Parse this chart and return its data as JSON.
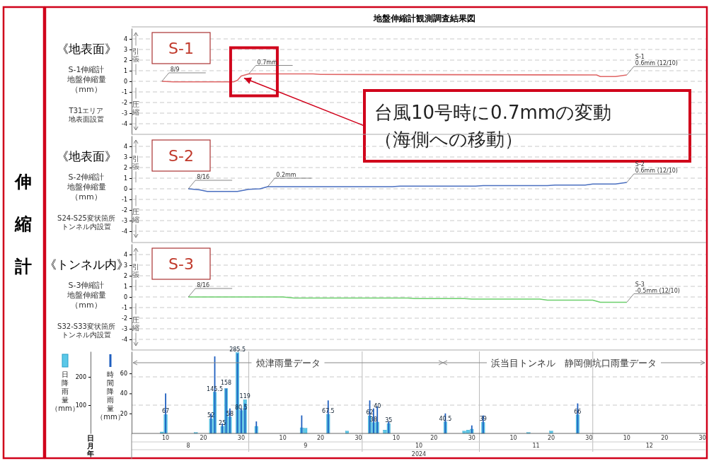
{
  "chart_data": [
    {
      "type": "line",
      "title": "地盤伸縮計観測調査結果図",
      "subtitle": "S-1",
      "ylabel": "S-1伸縮計地盤伸縮量（mm）",
      "color": "#e06666",
      "x": [
        "2024-08-09",
        "2024-08-12",
        "2024-08-28",
        "2024-08-29",
        "2024-08-30",
        "2024-09-01",
        "2024-09-18",
        "2024-09-20",
        "2024-12-02",
        "2024-12-03",
        "2024-12-07",
        "2024-12-10"
      ],
      "values": [
        0,
        -0.05,
        -0.05,
        0.1,
        0.5,
        0.7,
        0.7,
        0.65,
        0.6,
        0.45,
        0.45,
        0.6
      ],
      "xlim": [
        "2024-08-01",
        "2024-12-31"
      ],
      "ylim": [
        -5,
        5
      ],
      "yticks": [
        -4,
        -3,
        -2,
        -1,
        0,
        1,
        2,
        3,
        4
      ],
      "grid": "y",
      "tick_labels": "y",
      "annotations": [
        "《地表面》",
        "T31エリア地表面設置",
        "引張",
        "圧縮",
        "伸縮計",
        {
          "text": "台風10号時に0.7mmの変動（海側への移動）",
          "x": "2024-08-30",
          "y": 0.5
        },
        {
          "text": "8/9",
          "x": "2024-08-09",
          "y": 0
        },
        {
          "text": "0.7mm",
          "x": "2024-09-01",
          "y": 0.7
        },
        {
          "text": "S-1\n0.6mm (12/10)",
          "x": "2024-12-10",
          "y": 0.6
        }
      ]
    },
    {
      "type": "line",
      "subtitle": "S-2",
      "ylabel": "S-2伸縮計地盤伸縮量（mm）",
      "color": "#4a6fc0",
      "x": [
        "2024-08-16",
        "2024-08-19",
        "2024-08-21",
        "2024-08-29",
        "2024-09-01",
        "2024-09-04",
        "2024-09-06",
        "2024-10-09",
        "2024-10-11",
        "2024-10-31",
        "2024-11-02",
        "2024-11-19",
        "2024-11-21",
        "2024-11-29",
        "2024-12-01",
        "2024-12-07",
        "2024-12-10"
      ],
      "values": [
        0,
        -0.1,
        -0.25,
        -0.25,
        -0.05,
        0,
        0.2,
        0.2,
        0.25,
        0.25,
        0.3,
        0.3,
        0.35,
        0.35,
        0.45,
        0.45,
        0.6
      ],
      "xlim": [
        "2024-08-01",
        "2024-12-31"
      ],
      "ylim": [
        -5,
        5
      ],
      "yticks": [
        -4,
        -3,
        -2,
        -1,
        0,
        1,
        2,
        3,
        4
      ],
      "grid": "y",
      "tick_labels": "y",
      "annotations": [
        "《地表面》",
        "S24-S25変状箇所トンネル内設置",
        "引張",
        "圧縮",
        {
          "text": "8/16",
          "x": "2024-08-16",
          "y": 0
        },
        {
          "text": "0.2mm",
          "x": "2024-09-06",
          "y": 0.2
        },
        {
          "text": "S-2\n0.6mm (12/10)",
          "x": "2024-12-10",
          "y": 0.6
        }
      ]
    },
    {
      "type": "line",
      "subtitle": "S-3",
      "ylabel": "S-3伸縮計地盤伸縮量（mm）",
      "color": "#6ccf6c",
      "x": [
        "2024-08-16",
        "2024-09-10",
        "2024-09-13",
        "2024-10-13",
        "2024-10-15",
        "2024-10-28",
        "2024-10-30",
        "2024-11-17",
        "2024-11-19",
        "2024-12-01",
        "2024-12-03",
        "2024-12-10"
      ],
      "values": [
        0,
        0,
        -0.1,
        -0.1,
        -0.15,
        -0.15,
        -0.2,
        -0.2,
        -0.3,
        -0.3,
        -0.5,
        -0.5
      ],
      "xlim": [
        "2024-08-01",
        "2024-12-31"
      ],
      "ylim": [
        -5,
        5
      ],
      "yticks": [
        -4,
        -3,
        -2,
        -1,
        0,
        1,
        2,
        3,
        4
      ],
      "grid": "y",
      "tick_labels": "y",
      "annotations": [
        "《トンネル内》",
        "S32-S33変状箇所トンネル内設置",
        "引張",
        "圧縮",
        {
          "text": "8/16",
          "x": "2024-08-16",
          "y": 0
        },
        {
          "text": "S-3\n-0.5mm (12/10)",
          "x": "2024-12-10",
          "y": -0.5
        }
      ]
    },
    {
      "type": "bar",
      "ylabel": "日降雨量（mm）",
      "y2label": "時間降雨量（mm）",
      "xlabel": "日",
      "x2label": "月",
      "xlim": [
        "2024-08-01",
        "2024-12-31"
      ],
      "x2lim": [
        "2024-08-01",
        "2024-12-31"
      ],
      "xticks": [
        {
          "value": "2024-08-10",
          "label": "10"
        },
        {
          "value": "2024-08-20",
          "label": "20"
        },
        {
          "value": "2024-08-30",
          "label": "30"
        },
        {
          "value": "2024-09-10",
          "label": "10"
        },
        {
          "value": "2024-09-20",
          "label": "20"
        },
        {
          "value": "2024-09-30",
          "label": "30"
        },
        {
          "value": "2024-10-10",
          "label": "10"
        },
        {
          "value": "2024-10-20",
          "label": "20"
        },
        {
          "value": "2024-10-30",
          "label": "30"
        },
        {
          "value": "2024-11-10",
          "label": "10"
        },
        {
          "value": "2024-11-20",
          "label": "20"
        },
        {
          "value": "2024-11-30",
          "label": "30"
        },
        {
          "value": "2024-12-10",
          "label": "10"
        },
        {
          "value": "2024-12-20",
          "label": "20"
        },
        {
          "value": "2024-12-30",
          "label": "30"
        }
      ],
      "x2ticks": [
        {
          "value": "2024-08-16",
          "label": "8"
        },
        {
          "value": "2024-09-16",
          "label": "9"
        },
        {
          "value": "2024-10-16",
          "label": "10"
        },
        {
          "value": "2024-11-16",
          "label": "11"
        },
        {
          "value": "2024-12-16",
          "label": "12"
        }
      ],
      "ylim": [
        0,
        290
      ],
      "yticks": [
        100,
        200
      ],
      "y2lim": [
        0,
        82
      ],
      "y2ticks": [
        20,
        40,
        60
      ],
      "grid": "y",
      "annotations": [
        "年",
        "2024",
        "焼津雨量データ",
        "浜当目トンネル　静岡側坑口雨量データ"
      ],
      "series": [
        {
          "type": "bar",
          "color": "#5bc8e8",
          "x": [
            "2024-08-09",
            "2024-08-10",
            "2024-08-18",
            "2024-08-22",
            "2024-08-23",
            "2024-08-25",
            "2024-08-26",
            "2024-08-27",
            "2024-08-29",
            "2024-08-30",
            "2024-08-31",
            "2024-09-03",
            "2024-09-15",
            "2024-09-16",
            "2024-09-22",
            "2024-09-27",
            "2024-10-03",
            "2024-10-04",
            "2024-10-05",
            "2024-10-07",
            "2024-10-08",
            "2024-10-23",
            "2024-10-28",
            "2024-10-29",
            "2024-10-30",
            "2024-11-02",
            "2024-11-14",
            "2024-11-20",
            "2024-11-27"
          ],
          "values": [
            5,
            67,
            3,
            52,
            145.5,
            25,
            158,
            58,
            285.5,
            80.5,
            119,
            25,
            20,
            18,
            67.5,
            8,
            62,
            38,
            40,
            12,
            35,
            40.5,
            8,
            12,
            15,
            39,
            3,
            8,
            66
          ],
          "value_labels": [
            null,
            "67",
            null,
            "52",
            "145.5",
            "25",
            "158",
            "58",
            "285.5",
            "80.5",
            "119",
            null,
            null,
            null,
            "67.5",
            null,
            "62",
            "38",
            "40",
            null,
            "35",
            "40.5",
            null,
            null,
            null,
            "39",
            null,
            null,
            "66"
          ]
        },
        {
          "type": "bar",
          "color": "#1f5fbf",
          "axis": "y2",
          "x": [
            "2024-08-10",
            "2024-08-22",
            "2024-08-23",
            "2024-08-25",
            "2024-08-26",
            "2024-08-27",
            "2024-08-29",
            "2024-08-30",
            "2024-08-31",
            "2024-09-03",
            "2024-09-15",
            "2024-09-22",
            "2024-10-03",
            "2024-10-04",
            "2024-10-05",
            "2024-10-08",
            "2024-10-23",
            "2024-10-30",
            "2024-11-02",
            "2024-11-27"
          ],
          "values": [
            40,
            20,
            77,
            10,
            45,
            25,
            80,
            25,
            30,
            12,
            18,
            33,
            33,
            25,
            27,
            12,
            20,
            8,
            18,
            30
          ]
        }
      ]
    }
  ]
}
